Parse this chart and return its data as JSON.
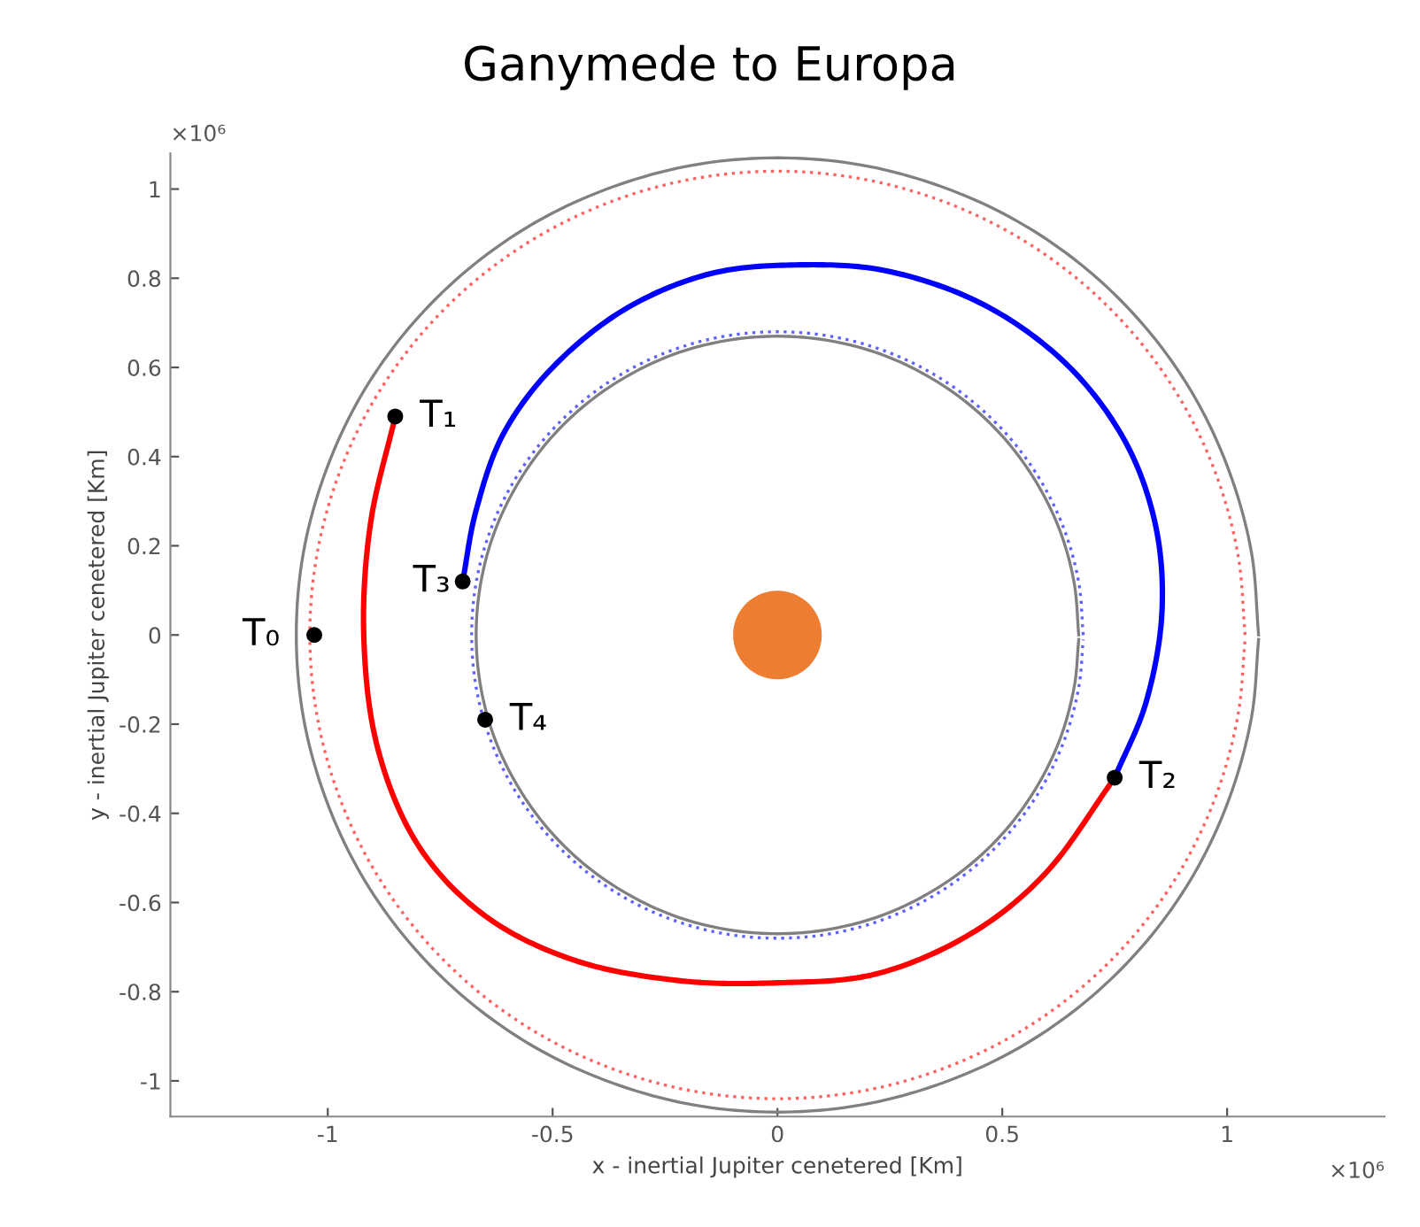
{
  "chart_data": {
    "type": "line",
    "title": "Ganymede to Europa",
    "xlabel": "x - inertial Jupiter cenetered [Km]",
    "ylabel": "y - inertial Jupiter cenetered [Km]",
    "xlim": [
      -1.35,
      1.35
    ],
    "ylim": [
      -1.08,
      1.08
    ],
    "xticks": [
      -1,
      -0.5,
      0,
      0.5,
      1
    ],
    "yticks": [
      -1,
      -0.8,
      -0.6,
      -0.4,
      -0.2,
      0,
      0.2,
      0.4,
      0.6,
      0.8,
      1
    ],
    "grid": false,
    "legend": false,
    "annotations": [
      {
        "text": "T₀",
        "x": -1.03,
        "y": 0
      },
      {
        "text": "T₁",
        "x": -0.85,
        "y": 0.49
      },
      {
        "text": "T₂",
        "x": 0.75,
        "y": -0.32
      },
      {
        "text": "T₃",
        "x": -0.7,
        "y": 0.12
      },
      {
        "text": "T₄",
        "x": -0.65,
        "y": -0.19
      },
      "×10⁶",
      "×10⁶"
    ],
    "series": [
      {
        "color": "#808080",
        "line_style": "solid",
        "x": [
          1.07,
          1.054,
          1.005,
          0.927,
          0.82,
          0.688,
          0.535,
          0.366,
          0.186,
          0,
          -0.186,
          -0.366,
          -0.535,
          -0.688,
          -0.82,
          -0.927,
          -1.005,
          -1.054,
          -1.07,
          -1.054,
          -1.005,
          -0.927,
          -0.82,
          -0.688,
          -0.535,
          -0.366,
          -0.186,
          0,
          0.186,
          0.366,
          0.535,
          0.688,
          0.82,
          0.927,
          1.005,
          1.054,
          1.07
        ],
        "values": [
          0,
          0.186,
          0.366,
          0.535,
          0.688,
          0.82,
          0.927,
          1.005,
          1.054,
          1.07,
          1.054,
          1.005,
          0.927,
          0.82,
          0.688,
          0.535,
          0.366,
          0.186,
          0,
          -0.186,
          -0.366,
          -0.535,
          -0.688,
          -0.82,
          -0.927,
          -1.005,
          -1.054,
          -1.07,
          -1.054,
          -1.005,
          -0.927,
          -0.82,
          -0.688,
          -0.535,
          -0.366,
          -0.186,
          -0.01
        ]
      },
      {
        "color": "#ff6060",
        "line_style": "dotted",
        "x": [
          1.04,
          1.024,
          0.977,
          0.901,
          0.797,
          0.669,
          0.52,
          0.356,
          0.181,
          0,
          -0.181,
          -0.356,
          -0.52,
          -0.669,
          -0.797,
          -0.901,
          -0.977,
          -1.024,
          -1.04,
          -1.024,
          -0.977,
          -0.901,
          -0.797,
          -0.669,
          -0.52,
          -0.356,
          -0.181,
          0,
          0.181,
          0.356,
          0.52,
          0.669,
          0.797,
          0.901,
          0.977,
          1.024,
          1.04
        ],
        "values": [
          0,
          0.181,
          0.356,
          0.52,
          0.669,
          0.797,
          0.901,
          0.977,
          1.024,
          1.04,
          1.024,
          0.977,
          0.901,
          0.797,
          0.669,
          0.52,
          0.356,
          0.181,
          0,
          -0.181,
          -0.356,
          -0.52,
          -0.669,
          -0.797,
          -0.901,
          -0.977,
          -1.024,
          -1.04,
          -1.024,
          -0.977,
          -0.901,
          -0.797,
          -0.669,
          -0.52,
          -0.356,
          -0.181,
          -0.01
        ]
      },
      {
        "color": "#808080",
        "line_style": "solid",
        "x": [
          0.67,
          0.66,
          0.63,
          0.58,
          0.513,
          0.431,
          0.335,
          0.229,
          0.116,
          0,
          -0.116,
          -0.229,
          -0.335,
          -0.431,
          -0.513,
          -0.58,
          -0.63,
          -0.66,
          -0.67,
          -0.66,
          -0.63,
          -0.58,
          -0.513,
          -0.431,
          -0.335,
          -0.229,
          -0.116,
          0,
          0.116,
          0.229,
          0.335,
          0.431,
          0.513,
          0.58,
          0.63,
          0.66,
          0.67
        ],
        "values": [
          0,
          0.116,
          0.229,
          0.335,
          0.431,
          0.513,
          0.58,
          0.63,
          0.66,
          0.67,
          0.66,
          0.63,
          0.58,
          0.513,
          0.431,
          0.335,
          0.229,
          0.116,
          0,
          -0.116,
          -0.229,
          -0.335,
          -0.431,
          -0.513,
          -0.58,
          -0.63,
          -0.66,
          -0.67,
          -0.66,
          -0.63,
          -0.58,
          -0.513,
          -0.431,
          -0.335,
          -0.229,
          -0.116,
          -0.01
        ]
      },
      {
        "color": "#6060ff",
        "line_style": "dotted",
        "x": [
          0.68,
          0.67,
          0.639,
          0.589,
          0.521,
          0.437,
          0.34,
          0.233,
          0.118,
          0,
          -0.118,
          -0.233,
          -0.34,
          -0.437,
          -0.521,
          -0.589,
          -0.639,
          -0.67,
          -0.68,
          -0.67,
          -0.639,
          -0.589,
          -0.521,
          -0.437,
          -0.34,
          -0.233,
          -0.118,
          0,
          0.118,
          0.233,
          0.34,
          0.437,
          0.521,
          0.589,
          0.639,
          0.67,
          0.68
        ],
        "values": [
          0,
          0.118,
          0.233,
          0.34,
          0.437,
          0.521,
          0.589,
          0.639,
          0.67,
          0.68,
          0.67,
          0.639,
          0.589,
          0.521,
          0.437,
          0.34,
          0.233,
          0.118,
          0,
          -0.118,
          -0.233,
          -0.34,
          -0.437,
          -0.521,
          -0.589,
          -0.639,
          -0.67,
          -0.68,
          -0.67,
          -0.639,
          -0.589,
          -0.521,
          -0.437,
          -0.34,
          -0.233,
          -0.118,
          -0.01
        ]
      },
      {
        "color": "#ff0000",
        "line_style": "solid",
        "x": [
          -0.85,
          -0.905,
          -0.92,
          -0.89,
          -0.8,
          -0.65,
          -0.45,
          -0.22,
          0,
          0.22,
          0.43,
          0.6,
          0.75
        ],
        "values": [
          0.49,
          0.25,
          0,
          -0.25,
          -0.47,
          -0.63,
          -0.73,
          -0.775,
          -0.78,
          -0.76,
          -0.67,
          -0.53,
          -0.32
        ]
      },
      {
        "color": "#0000ff",
        "line_style": "solid",
        "x": [
          0.75,
          0.82,
          0.855,
          0.84,
          0.77,
          0.64,
          0.46,
          0.25,
          0.05,
          -0.15,
          -0.34,
          -0.5,
          -0.61,
          -0.67,
          -0.7
        ],
        "values": [
          -0.32,
          -0.15,
          0.05,
          0.25,
          0.44,
          0.61,
          0.74,
          0.815,
          0.83,
          0.81,
          0.73,
          0.6,
          0.45,
          0.28,
          0.12
        ]
      },
      {
        "type": "scatter",
        "color": "#000000",
        "marker": "circle",
        "x": [
          -1.03,
          -0.85,
          0.75,
          -0.7,
          -0.65
        ],
        "values": [
          0,
          0.49,
          -0.32,
          0.12,
          -0.19
        ]
      },
      {
        "type": "bubble",
        "color": "#ed7d31",
        "marker": "circle",
        "x": [
          0
        ],
        "values": [
          0
        ],
        "sizes": [
          1
        ]
      }
    ]
  }
}
